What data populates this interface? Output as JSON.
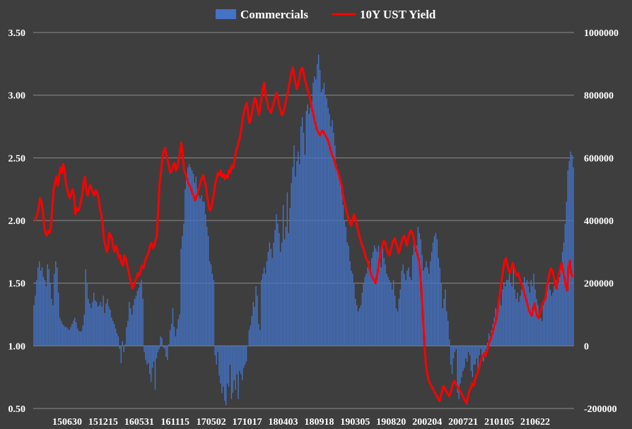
{
  "chart_data": {
    "type": "bar",
    "title": "",
    "x_tick_labels": [
      "150630",
      "151215",
      "160531",
      "161115",
      "170502",
      "171017",
      "180403",
      "180918",
      "190305",
      "190820",
      "200204",
      "200721",
      "210105",
      "210622"
    ],
    "left_axis": {
      "ylim": [
        0.5,
        3.5
      ],
      "ticks": [
        "0.50",
        "1.00",
        "1.50",
        "2.00",
        "2.50",
        "3.00",
        "3.50"
      ]
    },
    "right_axis": {
      "ylim": [
        -200000,
        1000000
      ],
      "ticks": [
        "-200000",
        "0",
        "200000",
        "400000",
        "600000",
        "800000",
        "1000000"
      ]
    },
    "grid": true,
    "legend_position": "top-center",
    "series": [
      {
        "name": "Commercials",
        "chart": "bar",
        "axis": "right",
        "color": "#4472c4",
        "values": [
          130000,
          160000,
          210000,
          250000,
          270000,
          240000,
          250000,
          220000,
          210000,
          190000,
          260000,
          245000,
          200000,
          150000,
          130000,
          230000,
          270000,
          250000,
          170000,
          90000,
          80000,
          70000,
          65000,
          60000,
          60000,
          55000,
          50000,
          60000,
          70000,
          80000,
          90000,
          75000,
          55000,
          48000,
          45000,
          48000,
          65000,
          100000,
          245000,
          200000,
          150000,
          135000,
          120000,
          140000,
          170000,
          145000,
          140000,
          125000,
          130000,
          140000,
          125000,
          160000,
          105000,
          135000,
          150000,
          125000,
          115000,
          90000,
          80000,
          70000,
          55000,
          40000,
          30000,
          -10000,
          -55000,
          15000,
          -20000,
          5000,
          60000,
          80000,
          140000,
          120000,
          100000,
          130000,
          150000,
          160000,
          175000,
          185000,
          200000,
          210000,
          150000,
          -20000,
          -45000,
          -60000,
          -55000,
          -90000,
          -115000,
          -70000,
          -50000,
          -140000,
          -40000,
          -20000,
          -10000,
          30000,
          25000,
          -5000,
          -10000,
          -35000,
          -45000,
          5000,
          50000,
          70000,
          120000,
          60000,
          30000,
          55000,
          85000,
          100000,
          310000,
          350000,
          390000,
          500000,
          550000,
          570000,
          580000,
          570000,
          560000,
          550000,
          520000,
          540000,
          500000,
          480000,
          470000,
          480000,
          460000,
          460000,
          420000,
          380000,
          350000,
          270000,
          260000,
          230000,
          210000,
          -30000,
          -60000,
          -20000,
          -95000,
          -120000,
          -150000,
          -130000,
          -175000,
          -190000,
          -120000,
          -130000,
          -60000,
          -170000,
          -150000,
          -110000,
          -140000,
          -90000,
          -170000,
          -80000,
          -90000,
          -110000,
          -70000,
          -60000,
          -50000,
          0,
          50000,
          65000,
          95000,
          140000,
          125000,
          190000,
          160000,
          70000,
          50000,
          210000,
          230000,
          250000,
          230000,
          270000,
          300000,
          330000,
          310000,
          280000,
          330000,
          370000,
          420000,
          390000,
          360000,
          300000,
          330000,
          450000,
          340000,
          380000,
          490000,
          360000,
          440000,
          520000,
          570000,
          640000,
          540000,
          590000,
          620000,
          580000,
          700000,
          730000,
          680000,
          610000,
          750000,
          770000,
          740000,
          760000,
          780000,
          840000,
          860000,
          850000,
          900000,
          930000,
          880000,
          810000,
          820000,
          840000,
          800000,
          790000,
          760000,
          740000,
          700000,
          720000,
          680000,
          640000,
          580000,
          560000,
          540000,
          520000,
          500000,
          450000,
          400000,
          380000,
          330000,
          320000,
          270000,
          240000,
          230000,
          200000,
          150000,
          130000,
          110000,
          120000,
          130000,
          170000,
          200000,
          220000,
          230000,
          250000,
          270000,
          240000,
          280000,
          300000,
          320000,
          310000,
          300000,
          320000,
          280000,
          250000,
          330000,
          280000,
          260000,
          230000,
          220000,
          210000,
          200000,
          180000,
          210000,
          160000,
          120000,
          110000,
          150000,
          180000,
          240000,
          260000,
          230000,
          210000,
          240000,
          250000,
          220000,
          210000,
          290000,
          330000,
          300000,
          320000,
          380000,
          360000,
          340000,
          290000,
          240000,
          250000,
          270000,
          250000,
          230000,
          270000,
          300000,
          330000,
          350000,
          360000,
          340000,
          280000,
          250000,
          200000,
          120000,
          150000,
          180000,
          110000,
          80000,
          20000,
          -60000,
          -90000,
          -40000,
          -20000,
          -10000,
          -150000,
          -170000,
          -120000,
          -100000,
          -80000,
          -70000,
          -40000,
          -50000,
          -20000,
          -30000,
          -80000,
          -100000,
          -60000,
          -60000,
          -40000,
          -90000,
          -30000,
          -10000,
          -30000,
          -50000,
          -20000,
          -10000,
          10000,
          40000,
          30000,
          50000,
          70000,
          90000,
          120000,
          100000,
          150000,
          170000,
          130000,
          180000,
          200000,
          190000,
          210000,
          210000,
          230000,
          200000,
          190000,
          250000,
          180000,
          150000,
          170000,
          140000,
          160000,
          180000,
          200000,
          220000,
          200000,
          210000,
          190000,
          170000,
          210000,
          190000,
          230000,
          180000,
          150000,
          130000,
          100000,
          90000,
          80000,
          130000,
          150000,
          170000,
          190000,
          200000,
          180000,
          160000,
          170000,
          190000,
          210000,
          180000,
          200000,
          220000,
          260000,
          300000,
          330000,
          390000,
          460000,
          560000,
          590000,
          620000,
          610000,
          570000
        ]
      },
      {
        "name": "10Y UST Yield",
        "chart": "line",
        "axis": "left",
        "color": "#ff0000",
        "values": [
          2.0,
          2.02,
          2.05,
          2.1,
          2.18,
          2.15,
          2.08,
          1.95,
          1.9,
          1.88,
          1.92,
          1.9,
          1.95,
          2.1,
          2.25,
          2.3,
          2.35,
          2.28,
          2.35,
          2.42,
          2.38,
          2.45,
          2.4,
          2.3,
          2.25,
          2.2,
          2.18,
          2.22,
          2.25,
          2.2,
          2.05,
          2.1,
          2.08,
          2.1,
          2.15,
          2.2,
          2.3,
          2.35,
          2.25,
          2.2,
          2.25,
          2.28,
          2.25,
          2.22,
          2.2,
          2.24,
          2.22,
          2.18,
          2.1,
          2.05,
          1.98,
          1.85,
          1.8,
          1.75,
          1.78,
          1.9,
          1.88,
          1.85,
          1.78,
          1.75,
          1.8,
          1.76,
          1.7,
          1.72,
          1.66,
          1.64,
          1.72,
          1.7,
          1.65,
          1.6,
          1.55,
          1.5,
          1.46,
          1.48,
          1.52,
          1.54,
          1.58,
          1.56,
          1.6,
          1.64,
          1.62,
          1.66,
          1.7,
          1.72,
          1.75,
          1.8,
          1.82,
          1.78,
          1.8,
          1.84,
          1.88,
          2.1,
          2.3,
          2.38,
          2.5,
          2.55,
          2.58,
          2.52,
          2.48,
          2.42,
          2.38,
          2.4,
          2.44,
          2.46,
          2.4,
          2.42,
          2.48,
          2.54,
          2.62,
          2.52,
          2.4,
          2.38,
          2.34,
          2.3,
          2.28,
          2.26,
          2.22,
          2.2,
          2.16,
          2.18,
          2.22,
          2.26,
          2.3,
          2.34,
          2.36,
          2.32,
          2.28,
          2.2,
          2.12,
          2.08,
          2.1,
          2.16,
          2.22,
          2.3,
          2.34,
          2.38,
          2.36,
          2.4,
          2.35,
          2.37,
          2.33,
          2.36,
          2.34,
          2.4,
          2.38,
          2.44,
          2.42,
          2.46,
          2.54,
          2.58,
          2.62,
          2.66,
          2.72,
          2.8,
          2.86,
          2.9,
          2.94,
          2.88,
          2.78,
          2.8,
          2.86,
          2.92,
          2.98,
          2.96,
          2.9,
          2.84,
          2.9,
          2.98,
          3.05,
          3.1,
          3.0,
          2.96,
          2.9,
          2.88,
          2.86,
          2.9,
          2.94,
          2.98,
          3.02,
          2.98,
          2.92,
          2.88,
          2.84,
          2.86,
          2.9,
          2.96,
          3.0,
          3.06,
          3.12,
          3.18,
          3.22,
          3.16,
          3.1,
          3.05,
          3.08,
          3.14,
          3.2,
          3.22,
          3.18,
          3.12,
          3.08,
          3.04,
          3.0,
          2.96,
          2.9,
          2.86,
          2.8,
          2.76,
          2.72,
          2.7,
          2.68,
          2.7,
          2.72,
          2.7,
          2.68,
          2.66,
          2.64,
          2.6,
          2.56,
          2.52,
          2.5,
          2.46,
          2.42,
          2.4,
          2.36,
          2.32,
          2.28,
          2.2,
          2.15,
          2.1,
          2.05,
          2.02,
          1.98,
          1.96,
          2.0,
          2.05,
          2.02,
          1.98,
          1.92,
          1.88,
          1.84,
          1.8,
          1.78,
          1.74,
          1.7,
          1.68,
          1.64,
          1.6,
          1.56,
          1.54,
          1.52,
          1.5,
          1.56,
          1.62,
          1.7,
          1.76,
          1.8,
          1.84,
          1.82,
          1.78,
          1.74,
          1.72,
          1.76,
          1.8,
          1.84,
          1.86,
          1.82,
          1.78,
          1.74,
          1.78,
          1.82,
          1.86,
          1.88,
          1.84,
          1.8,
          1.86,
          1.9,
          1.92,
          1.9,
          1.86,
          1.8,
          1.76,
          1.72,
          1.68,
          1.56,
          1.4,
          1.2,
          1.0,
          0.85,
          0.78,
          0.72,
          0.7,
          0.68,
          0.66,
          0.64,
          0.62,
          0.6,
          0.58,
          0.56,
          0.6,
          0.64,
          0.68,
          0.66,
          0.64,
          0.62,
          0.6,
          0.62,
          0.66,
          0.7,
          0.72,
          0.7,
          0.68,
          0.66,
          0.64,
          0.62,
          0.6,
          0.58,
          0.56,
          0.54,
          0.6,
          0.64,
          0.66,
          0.7,
          0.68,
          0.72,
          0.76,
          0.78,
          0.82,
          0.86,
          0.9,
          0.92,
          0.94,
          0.92,
          0.96,
          1.0,
          1.04,
          1.06,
          1.1,
          1.14,
          1.18,
          1.22,
          1.3,
          1.38,
          1.46,
          1.54,
          1.62,
          1.68,
          1.7,
          1.64,
          1.6,
          1.58,
          1.62,
          1.66,
          1.62,
          1.58,
          1.56,
          1.58,
          1.54,
          1.5,
          1.48,
          1.44,
          1.4,
          1.36,
          1.32,
          1.28,
          1.26,
          1.24,
          1.3,
          1.34,
          1.28,
          1.24,
          1.22,
          1.26,
          1.3,
          1.34,
          1.36,
          1.38,
          1.46,
          1.52,
          1.58,
          1.62,
          1.6,
          1.56,
          1.5,
          1.46,
          1.52,
          1.58,
          1.62,
          1.66,
          1.6,
          1.54,
          1.48,
          1.44,
          1.62,
          1.68,
          1.58,
          1.55
        ]
      }
    ]
  }
}
